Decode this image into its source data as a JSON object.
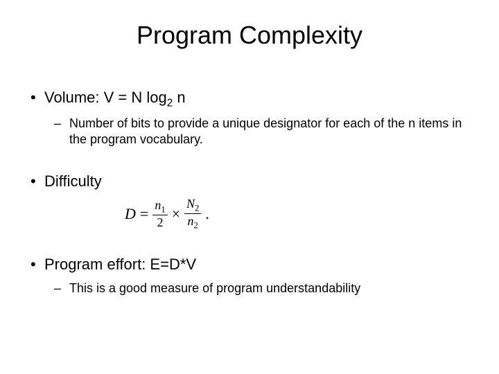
{
  "title": "Program Complexity",
  "sections": [
    {
      "main": "Volume: V = N log",
      "mainSubscript": "2",
      "mainTail": " n",
      "sub": "Number of bits to provide a unique designator for each of the n items in the program vocabulary."
    },
    {
      "main": "Difficulty",
      "formula": {
        "lhs": "D",
        "eq": "=",
        "frac1_num_var": "n",
        "frac1_num_sub": "1",
        "frac1_den": "2",
        "times": "×",
        "frac2_num_var": "N",
        "frac2_num_sub": "2",
        "frac2_den_var": "n",
        "frac2_den_sub": "2",
        "dot": "."
      }
    },
    {
      "main": "Program effort: E=D*V",
      "sub": "This is a good measure of program understandability"
    }
  ],
  "style": {
    "background_color": "#ffffff",
    "text_color": "#000000",
    "title_fontsize": 36,
    "bullet_fontsize": 22,
    "sub_bullet_fontsize": 18,
    "font_family": "Arial"
  }
}
